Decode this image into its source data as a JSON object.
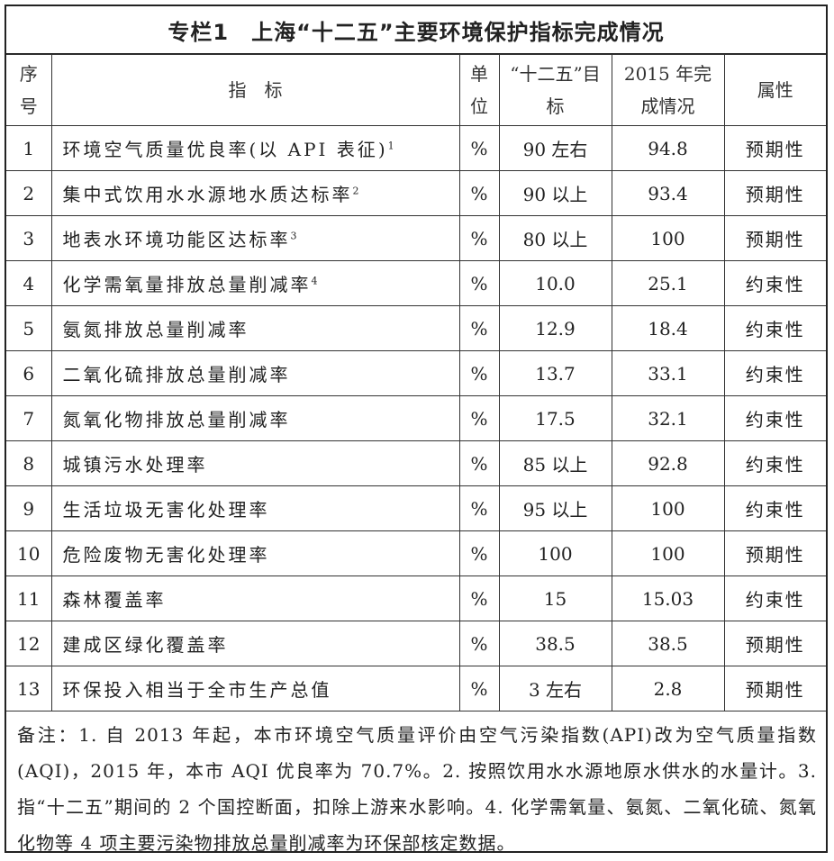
{
  "title": "专栏1　上海“十二五”主要环境保护指标完成情况",
  "headers": {
    "no": "序号",
    "indicator": "指　标",
    "unit": "单位",
    "target": "“十二五”目标",
    "result": "2015 年完成情况",
    "attr": "属性"
  },
  "rows": [
    {
      "no": "1",
      "name": "环境空气质量优良率(以 API 表征)",
      "sup": "1",
      "unit": "%",
      "target": "90 左右",
      "result": "94.8",
      "attr": "预期性"
    },
    {
      "no": "2",
      "name": "集中式饮用水水源地水质达标率",
      "sup": "2",
      "unit": "%",
      "target": "90 以上",
      "result": "93.4",
      "attr": "预期性"
    },
    {
      "no": "3",
      "name": "地表水环境功能区达标率",
      "sup": "3",
      "unit": "%",
      "target": "80 以上",
      "result": "100",
      "attr": "预期性"
    },
    {
      "no": "4",
      "name": "化学需氧量排放总量削减率",
      "sup": "4",
      "unit": "%",
      "target": "10.0",
      "result": "25.1",
      "attr": "约束性"
    },
    {
      "no": "5",
      "name": "氨氮排放总量削减率",
      "sup": "",
      "unit": "%",
      "target": "12.9",
      "result": "18.4",
      "attr": "约束性"
    },
    {
      "no": "6",
      "name": "二氧化硫排放总量削减率",
      "sup": "",
      "unit": "%",
      "target": "13.7",
      "result": "33.1",
      "attr": "约束性"
    },
    {
      "no": "7",
      "name": "氮氧化物排放总量削减率",
      "sup": "",
      "unit": "%",
      "target": "17.5",
      "result": "32.1",
      "attr": "约束性"
    },
    {
      "no": "8",
      "name": "城镇污水处理率",
      "sup": "",
      "unit": "%",
      "target": "85 以上",
      "result": "92.8",
      "attr": "约束性"
    },
    {
      "no": "9",
      "name": "生活垃圾无害化处理率",
      "sup": "",
      "unit": "%",
      "target": "95 以上",
      "result": "100",
      "attr": "约束性"
    },
    {
      "no": "10",
      "name": "危险废物无害化处理率",
      "sup": "",
      "unit": "%",
      "target": "100",
      "result": "100",
      "attr": "预期性"
    },
    {
      "no": "11",
      "name": "森林覆盖率",
      "sup": "",
      "unit": "%",
      "target": "15",
      "result": "15.03",
      "attr": "约束性"
    },
    {
      "no": "12",
      "name": "建成区绿化覆盖率",
      "sup": "",
      "unit": "%",
      "target": "38.5",
      "result": "38.5",
      "attr": "预期性"
    },
    {
      "no": "13",
      "name": "环保投入相当于全市生产总值",
      "sup": "",
      "unit": "%",
      "target": "3 左右",
      "result": "2.8",
      "attr": "预期性"
    }
  ],
  "notes": "备注：1. 自 2013 年起，本市环境空气质量评价由空气污染指数(API)改为空气质量指数(AQI)，2015 年，本市 AQI 优良率为 70.7%。2. 按照饮用水水源地原水供水的水量计。3. 指“十二五”期间的 2 个国控断面，扣除上游来水影响。4. 化学需氧量、氨氮、二氧化硫、氮氧化物等 4 项主要污染物排放总量削减率为环保部核定数据。"
}
